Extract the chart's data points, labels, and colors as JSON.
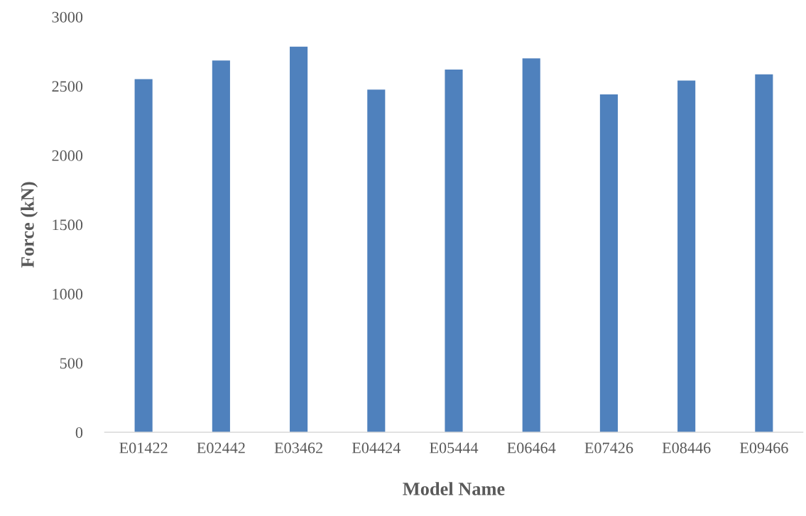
{
  "chart_data": {
    "type": "bar",
    "xlabel": "Model Name",
    "ylabel": "Force (kN)",
    "categories": [
      "E01422",
      "E02442",
      "E03462",
      "E04424",
      "E05444",
      "E06464",
      "E07426",
      "E08446",
      "E09466"
    ],
    "values": [
      2550,
      2685,
      2785,
      2475,
      2620,
      2700,
      2440,
      2540,
      2585
    ],
    "color": "#4f81bd",
    "ylim": [
      0,
      3000
    ],
    "yticks": [
      0,
      500,
      1000,
      1500,
      2000,
      2500,
      3000
    ],
    "grid": false,
    "legend": false
  }
}
